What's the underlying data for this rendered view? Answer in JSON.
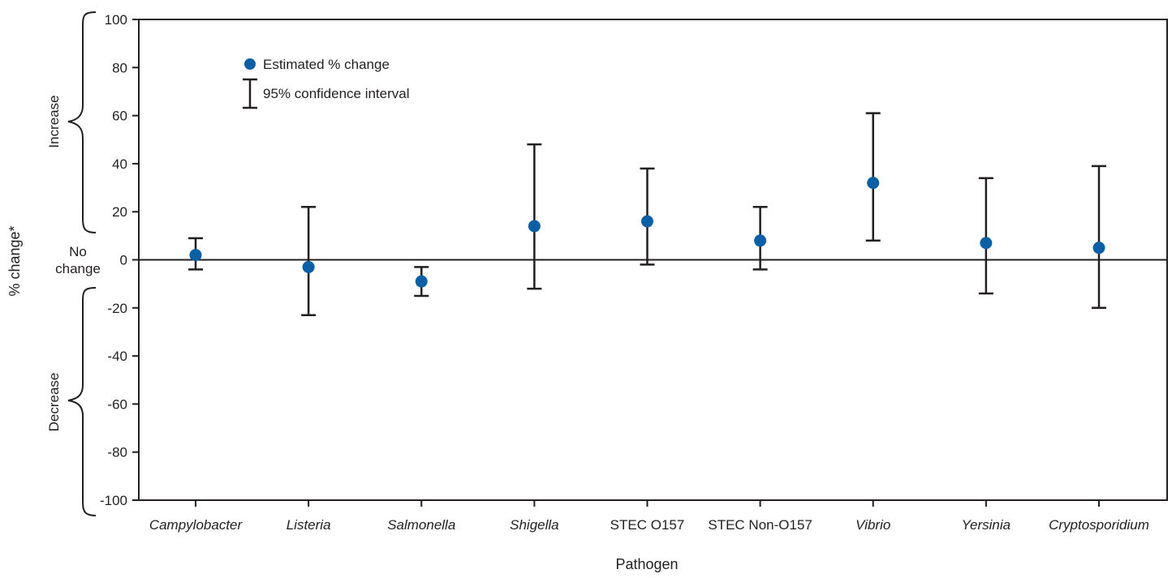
{
  "chart_data": {
    "type": "scatter",
    "xlabel": "Pathogen",
    "ylabel": "% change*",
    "ylim": [
      -100,
      100
    ],
    "yticks": [
      100,
      80,
      60,
      40,
      20,
      0,
      -20,
      -40,
      -60,
      -80,
      -100
    ],
    "ytick_labels": [
      "100",
      "80",
      "60",
      "40",
      "20",
      "0",
      "-20",
      "-40",
      "-60",
      "-80",
      "-100"
    ],
    "categories": [
      "Campylobacter",
      "Listeria",
      "Salmonella",
      "Shigella",
      "STEC O157",
      "STEC Non-O157",
      "Vibrio",
      "Yersinia",
      "Cryptosporidium"
    ],
    "italic_categories": [
      true,
      true,
      true,
      true,
      false,
      false,
      true,
      true,
      true
    ],
    "series": [
      {
        "name": "Estimated % change",
        "values": [
          2,
          -3,
          -9,
          14,
          16,
          8,
          32,
          7,
          5
        ],
        "ci_lower": [
          -4,
          -23,
          -15,
          -12,
          -2,
          -4,
          8,
          -14,
          -20
        ],
        "ci_upper": [
          9,
          22,
          -3,
          48,
          38,
          22,
          61,
          34,
          39
        ],
        "ci_name": "95% confidence interval"
      }
    ],
    "legend": {
      "position": "top-left",
      "items": [
        "Estimated % change",
        "95% confidence interval"
      ]
    },
    "annotations": {
      "increase": "Increase",
      "decrease": "Decrease",
      "no_change_line1": "No",
      "no_change_line2": "change"
    },
    "colors": {
      "point": "#0b5fa5",
      "errorbar": "#231f20",
      "axis": "#231f20"
    },
    "grid": false
  }
}
